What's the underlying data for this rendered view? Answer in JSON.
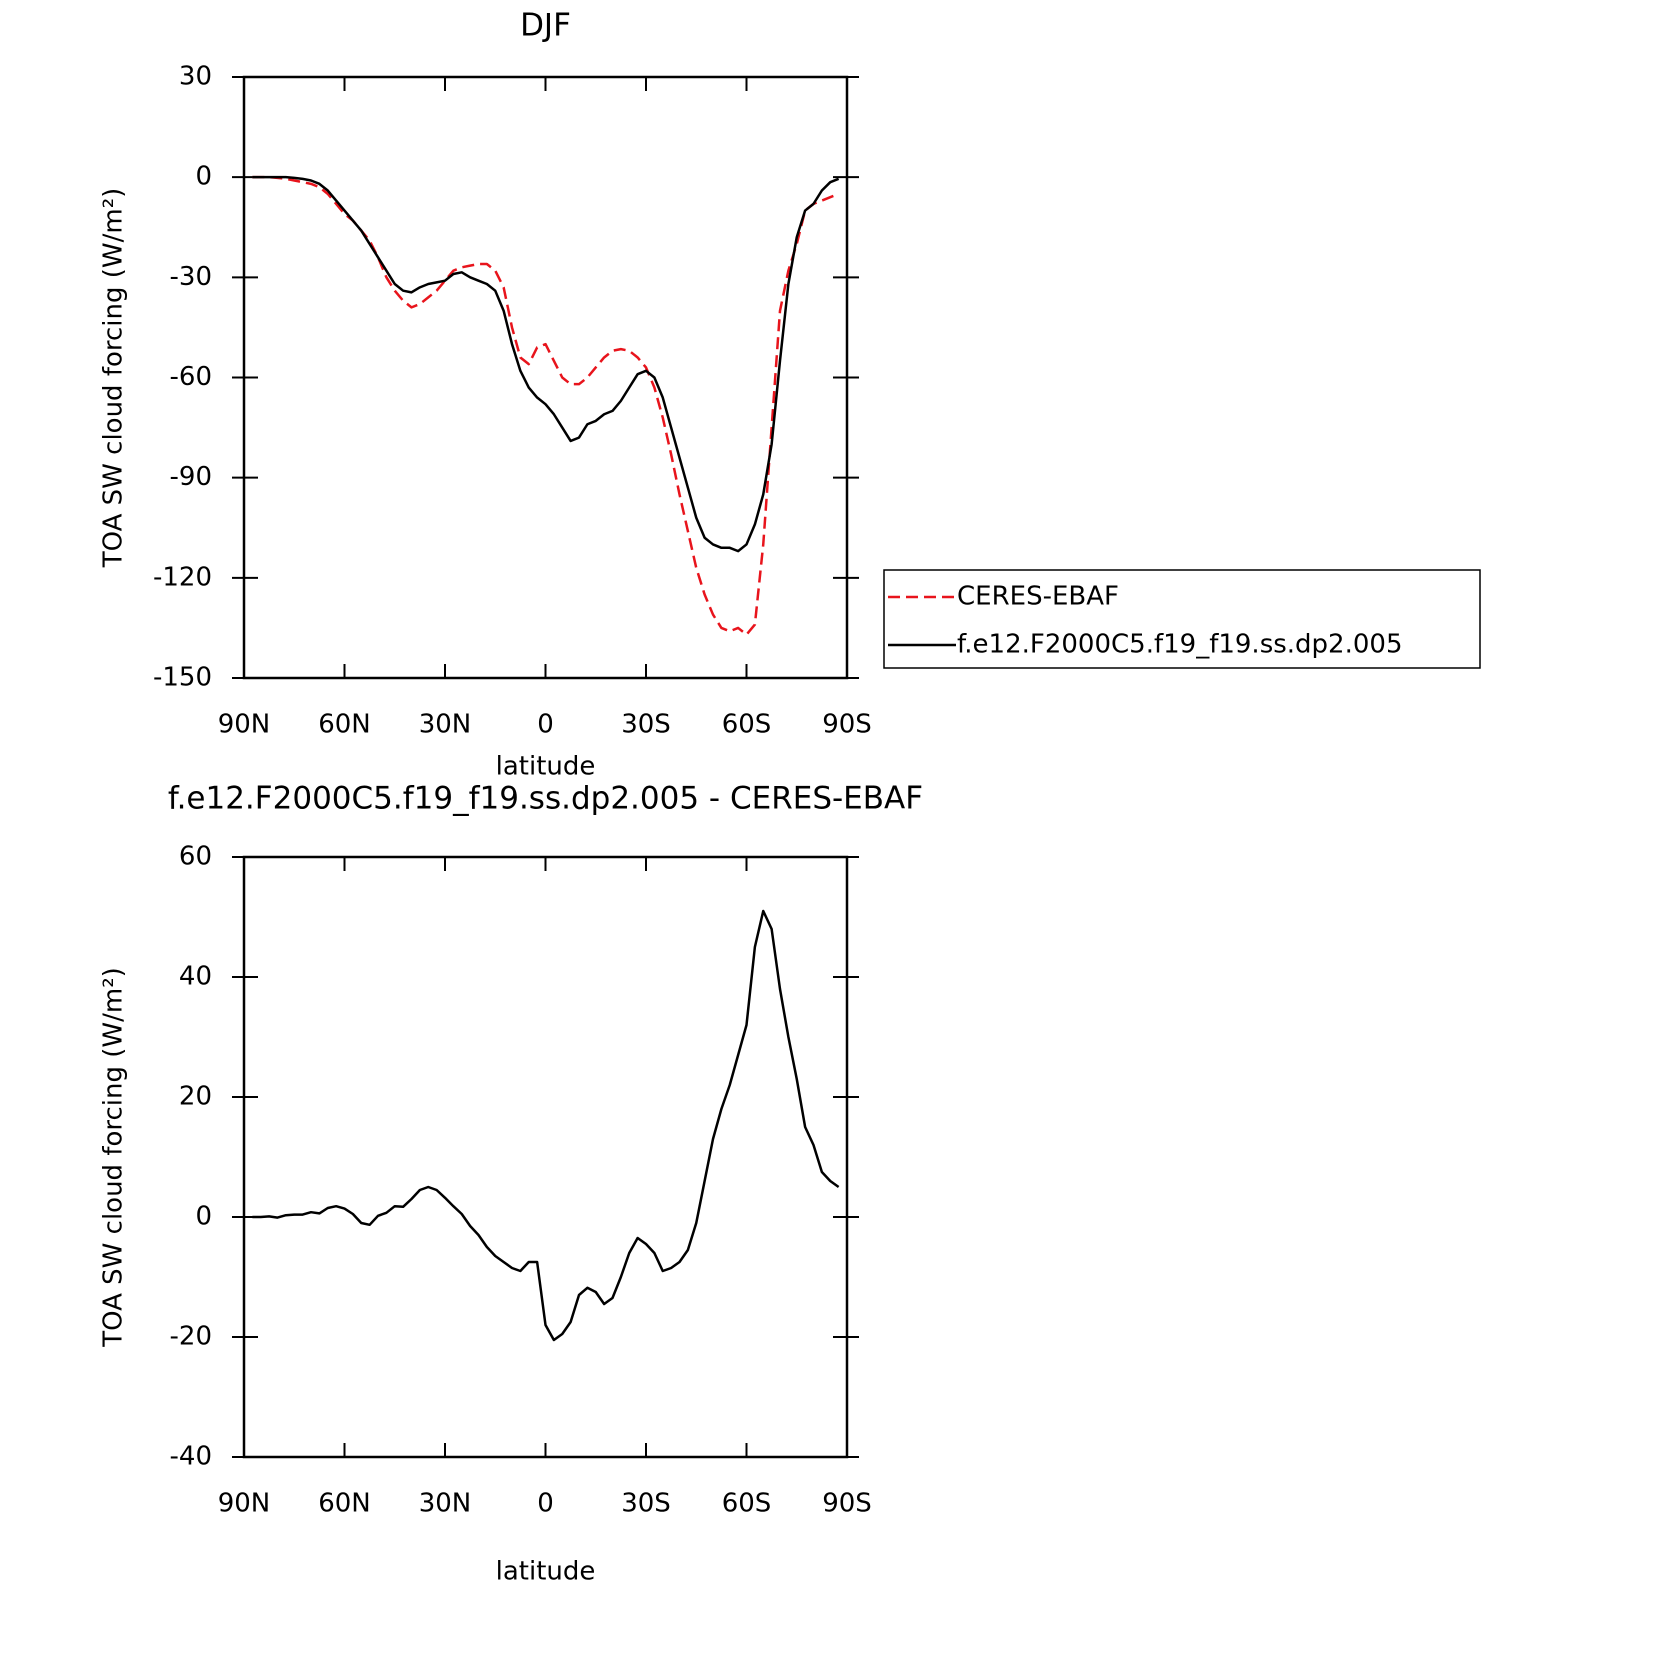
{
  "chart_data": [
    {
      "type": "line",
      "title": "DJF",
      "xlabel": "latitude",
      "ylabel": "TOA SW cloud forcing (W/m²)",
      "xlim": [
        90,
        -90
      ],
      "ylim": [
        -150,
        30
      ],
      "xticks": [
        {
          "value": 90,
          "label": "90N"
        },
        {
          "value": 60,
          "label": "60N"
        },
        {
          "value": 30,
          "label": "30N"
        },
        0,
        {
          "value": -30,
          "label": "30S"
        },
        {
          "value": -60,
          "label": "60S"
        },
        {
          "value": -90,
          "label": "90S"
        }
      ],
      "yticks": [
        -150,
        -120,
        -90,
        -60,
        -30,
        0,
        30
      ],
      "legend": "right",
      "x": [
        87.5,
        85,
        82.5,
        80,
        77.5,
        75,
        72.5,
        70,
        67.5,
        65,
        62.5,
        60,
        57.5,
        55,
        52.5,
        50,
        47.5,
        45,
        42.5,
        40,
        37.5,
        35,
        32.5,
        30,
        27.5,
        25,
        22.5,
        20,
        17.5,
        15,
        12.5,
        10,
        7.5,
        5,
        2.5,
        0,
        -2.5,
        -5,
        -7.5,
        -10,
        -12.5,
        -15,
        -17.5,
        -20,
        -22.5,
        -25,
        -27.5,
        -30,
        -32.5,
        -35,
        -37.5,
        -40,
        -42.5,
        -45,
        -47.5,
        -50,
        -52.5,
        -55,
        -57.5,
        -60,
        -62.5,
        -65,
        -67.5,
        -70,
        -72.5,
        -75,
        -77.5,
        -80,
        -82.5,
        -85,
        -87.5
      ],
      "series": [
        {
          "name": "CERES-EBAF",
          "color": "#e8141c",
          "dash": true,
          "values": [
            0,
            0,
            0,
            -0.2,
            -0.5,
            -1,
            -1.5,
            -2,
            -3,
            -5,
            -8,
            -11,
            -13,
            -16,
            -19,
            -24,
            -30,
            -34,
            -37,
            -39,
            -38,
            -36,
            -34,
            -31,
            -28,
            -27,
            -26.5,
            -26,
            -26,
            -28,
            -33,
            -45,
            -54,
            -56,
            -51,
            -50,
            -55,
            -60,
            -62,
            -62,
            -60,
            -57,
            -54,
            -52,
            -51.5,
            -52,
            -54,
            -57,
            -63,
            -72,
            -83,
            -95,
            -106,
            -117,
            -125,
            -131,
            -135,
            -136,
            -135,
            -137,
            -134,
            -110,
            -75,
            -40,
            -28,
            -20,
            -10,
            -8,
            -7,
            -6,
            -5
          ]
        },
        {
          "name": "f.e12.F2000C5.f19_f19.ss.dp2.005",
          "color": "#000000",
          "dash": false,
          "values": [
            0,
            0,
            0,
            0,
            0,
            -0.2,
            -0.5,
            -1,
            -2,
            -4,
            -7,
            -10,
            -13,
            -16,
            -20,
            -24,
            -28,
            -32,
            -34,
            -34.5,
            -33,
            -32,
            -31.5,
            -31,
            -29,
            -28.5,
            -30,
            -31,
            -32,
            -34,
            -40,
            -50,
            -58,
            -63,
            -66,
            -68,
            -71,
            -75,
            -79,
            -78,
            -74,
            -73,
            -71,
            -70,
            -67,
            -63,
            -59,
            -58,
            -60,
            -66,
            -75,
            -84,
            -93,
            -102,
            -108,
            -110,
            -111,
            -111,
            -112,
            -110,
            -104,
            -95,
            -80,
            -55,
            -32,
            -18,
            -10,
            -8,
            -4,
            -1.5,
            -0.5
          ]
        }
      ]
    },
    {
      "type": "line",
      "title": "f.e12.F2000C5.f19_f19.ss.dp2.005 - CERES-EBAF",
      "xlabel": "latitude",
      "ylabel": "TOA SW cloud forcing (W/m²)",
      "xlim": [
        90,
        -90
      ],
      "ylim": [
        -40,
        60
      ],
      "xticks": [
        {
          "value": 90,
          "label": "90N"
        },
        {
          "value": 60,
          "label": "60N"
        },
        {
          "value": 30,
          "label": "30N"
        },
        0,
        {
          "value": -30,
          "label": "30S"
        },
        {
          "value": -60,
          "label": "60S"
        },
        {
          "value": -90,
          "label": "90S"
        }
      ],
      "yticks": [
        -40,
        -20,
        0,
        20,
        40,
        60
      ],
      "color": "#000000",
      "x": [
        87.5,
        85,
        82.5,
        80,
        77.5,
        75,
        72.5,
        70,
        67.5,
        65,
        62.5,
        60,
        57.5,
        55,
        52.5,
        50,
        47.5,
        45,
        42.5,
        40,
        37.5,
        35,
        32.5,
        30,
        27.5,
        25,
        22.5,
        20,
        17.5,
        15,
        12.5,
        10,
        7.5,
        5,
        2.5,
        0,
        -2.5,
        -5,
        -7.5,
        -10,
        -12.5,
        -15,
        -17.5,
        -20,
        -22.5,
        -25,
        -27.5,
        -30,
        -32.5,
        -35,
        -37.5,
        -40,
        -42.5,
        -45,
        -47.5,
        -50,
        -52.5,
        -55,
        -57.5,
        -60,
        -62.5,
        -65,
        -67.5,
        -70,
        -72.5,
        -75,
        -77.5,
        -80,
        -82.5,
        -85,
        -87.5
      ],
      "values": [
        0,
        0,
        0.1,
        -0.1,
        0.3,
        0.4,
        0.4,
        0.8,
        0.6,
        1.5,
        1.8,
        1.4,
        0.5,
        -1,
        -1.3,
        0.2,
        0.7,
        1.8,
        1.7,
        3,
        4.5,
        5,
        4.5,
        3.2,
        1.8,
        0.5,
        -1.5,
        -3,
        -5,
        -6.5,
        -7.5,
        -8.5,
        -9,
        -7.5,
        -7.5,
        -18,
        -20.5,
        -19.5,
        -17.5,
        -13,
        -11.8,
        -12.5,
        -14.5,
        -13.5,
        -10,
        -6,
        -3.5,
        -4.5,
        -6,
        -9,
        -8.5,
        -7.5,
        -5.5,
        -1,
        6,
        13,
        18,
        22,
        27,
        32,
        45,
        51,
        48,
        38,
        30,
        23,
        15,
        12,
        7.5,
        6,
        5
      ]
    }
  ]
}
